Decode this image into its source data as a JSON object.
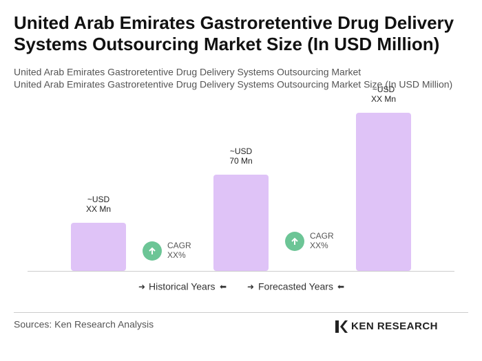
{
  "chart_data": {
    "type": "bar",
    "title": [
      "United Arab Emirates Gastroretentive Drug Delivery",
      "Systems Outsourcing Market Size (In USD Million)"
    ],
    "subtitle": [
      "United Arab Emirates Gastroretentive Drug Delivery Systems Outsourcing Market",
      "United Arab Emirates Gastroretentive Drug Delivery Systems Outsourcing Market Size (In USD Million)"
    ],
    "values": [
      35,
      70,
      115
    ],
    "value_labels": [
      [
        "~USD",
        "XX Mn"
      ],
      [
        "~USD",
        "70 Mn"
      ],
      [
        "~USD",
        "XX Mn"
      ]
    ],
    "color": "#dfc3f7",
    "annotations": [
      [
        "CAGR",
        "XX%"
      ],
      [
        "CAGR",
        "XX%"
      ]
    ],
    "legend": [
      "Historical Years",
      "Forecasted Years"
    ],
    "source": "Sources: Ken Research Analysis",
    "logo": "KEN RESEARCH"
  }
}
